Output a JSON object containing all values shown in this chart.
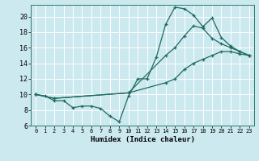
{
  "xlabel": "Humidex (Indice chaleur)",
  "bg_color": "#cce9f0",
  "grid_color": "#ffffff",
  "line_color": "#1e6b5e",
  "xlim": [
    -0.5,
    23.5
  ],
  "ylim": [
    6,
    21.5
  ],
  "xticks": [
    0,
    1,
    2,
    3,
    4,
    5,
    6,
    7,
    8,
    9,
    10,
    11,
    12,
    13,
    14,
    15,
    16,
    17,
    18,
    19,
    20,
    21,
    22,
    23
  ],
  "yticks": [
    6,
    8,
    10,
    12,
    14,
    16,
    18,
    20
  ],
  "line1_x": [
    0,
    1,
    2,
    3,
    4,
    5,
    6,
    7,
    8,
    9,
    10,
    11,
    12,
    13,
    14,
    15,
    16,
    17,
    18,
    19,
    20,
    21,
    22,
    23
  ],
  "line1_y": [
    10,
    9.8,
    9.2,
    9.2,
    8.3,
    8.5,
    8.5,
    8.2,
    7.2,
    6.5,
    9.8,
    12.0,
    12.0,
    14.8,
    19.0,
    21.2,
    21.0,
    20.2,
    18.7,
    19.8,
    17.3,
    16.2,
    15.5,
    15.0
  ],
  "line2_x": [
    0,
    2,
    10,
    14,
    15,
    16,
    17,
    18,
    19,
    20,
    21,
    22,
    23
  ],
  "line2_y": [
    10,
    9.5,
    10.2,
    15.0,
    16.0,
    17.5,
    18.8,
    18.5,
    17.2,
    16.5,
    16.0,
    15.5,
    15.0
  ],
  "line3_x": [
    0,
    2,
    10,
    14,
    15,
    16,
    17,
    18,
    19,
    20,
    21,
    22,
    23
  ],
  "line3_y": [
    10,
    9.5,
    10.2,
    11.5,
    12.0,
    13.2,
    14.0,
    14.5,
    15.0,
    15.5,
    15.5,
    15.2,
    15.0
  ]
}
